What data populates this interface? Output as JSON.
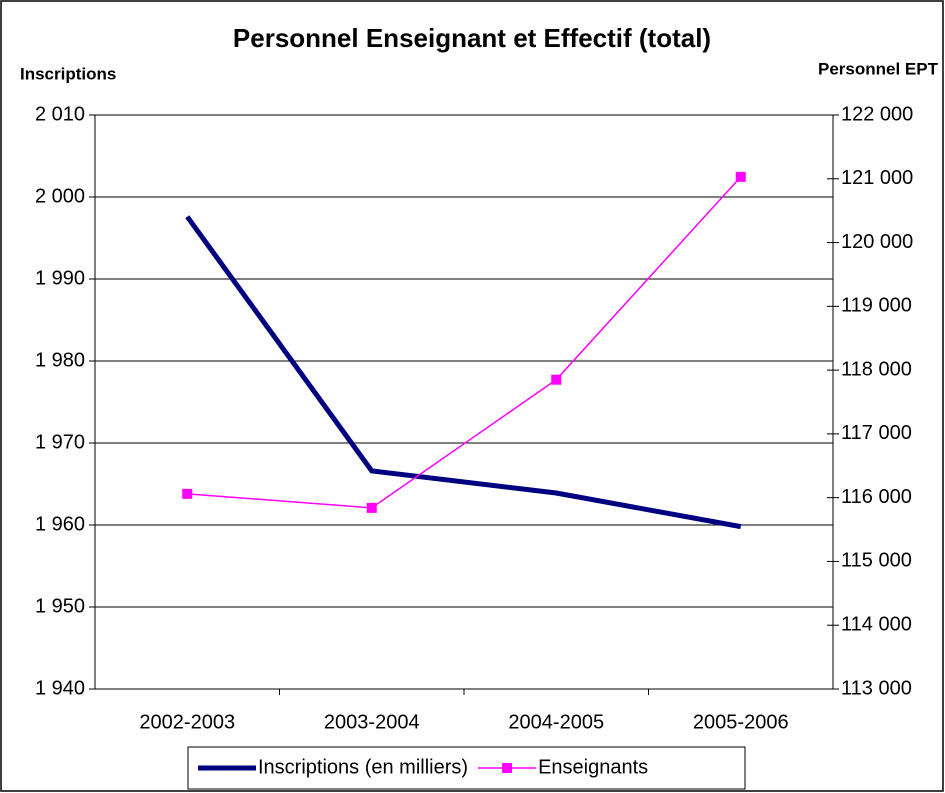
{
  "chart_data": {
    "type": "line",
    "title": "Personnel Enseignant et Effectif (total)",
    "ylabel": "Inscriptions",
    "y2label": "Personnel EPT",
    "categories": [
      "2002-2003",
      "2003-2004",
      "2004-2005",
      "2005-2006"
    ],
    "series": [
      {
        "name": "Inscriptions (en milliers)",
        "color": "#000080",
        "values": [
          1997.6,
          1966.6,
          1963.9,
          1959.8
        ],
        "axis": "y",
        "marker": "none"
      },
      {
        "name": "Enseignants",
        "color": "#ff00ff",
        "values": [
          116060,
          115840,
          117850,
          121030
        ],
        "axis": "y2",
        "marker": "square"
      }
    ],
    "ylim": [
      1940,
      2010
    ],
    "yticks": [
      {
        "value": 1940,
        "label": "1 940"
      },
      {
        "value": 1950,
        "label": "1 950"
      },
      {
        "value": 1960,
        "label": "1 960"
      },
      {
        "value": 1970,
        "label": "1 970"
      },
      {
        "value": 1980,
        "label": "1 980"
      },
      {
        "value": 1990,
        "label": "1 990"
      },
      {
        "value": 2000,
        "label": "2 000"
      },
      {
        "value": 2010,
        "label": "2 010"
      }
    ],
    "y2lim": [
      113000,
      122000
    ],
    "y2ticks": [
      {
        "value": 113000,
        "label": "113 000"
      },
      {
        "value": 114000,
        "label": "114 000"
      },
      {
        "value": 115000,
        "label": "115 000"
      },
      {
        "value": 116000,
        "label": "116 000"
      },
      {
        "value": 117000,
        "label": "117 000"
      },
      {
        "value": 118000,
        "label": "118 000"
      },
      {
        "value": 119000,
        "label": "119 000"
      },
      {
        "value": 120000,
        "label": "120 000"
      },
      {
        "value": 121000,
        "label": "121 000"
      },
      {
        "value": 122000,
        "label": "122 000"
      }
    ],
    "grid": true,
    "legend": "bottom"
  }
}
